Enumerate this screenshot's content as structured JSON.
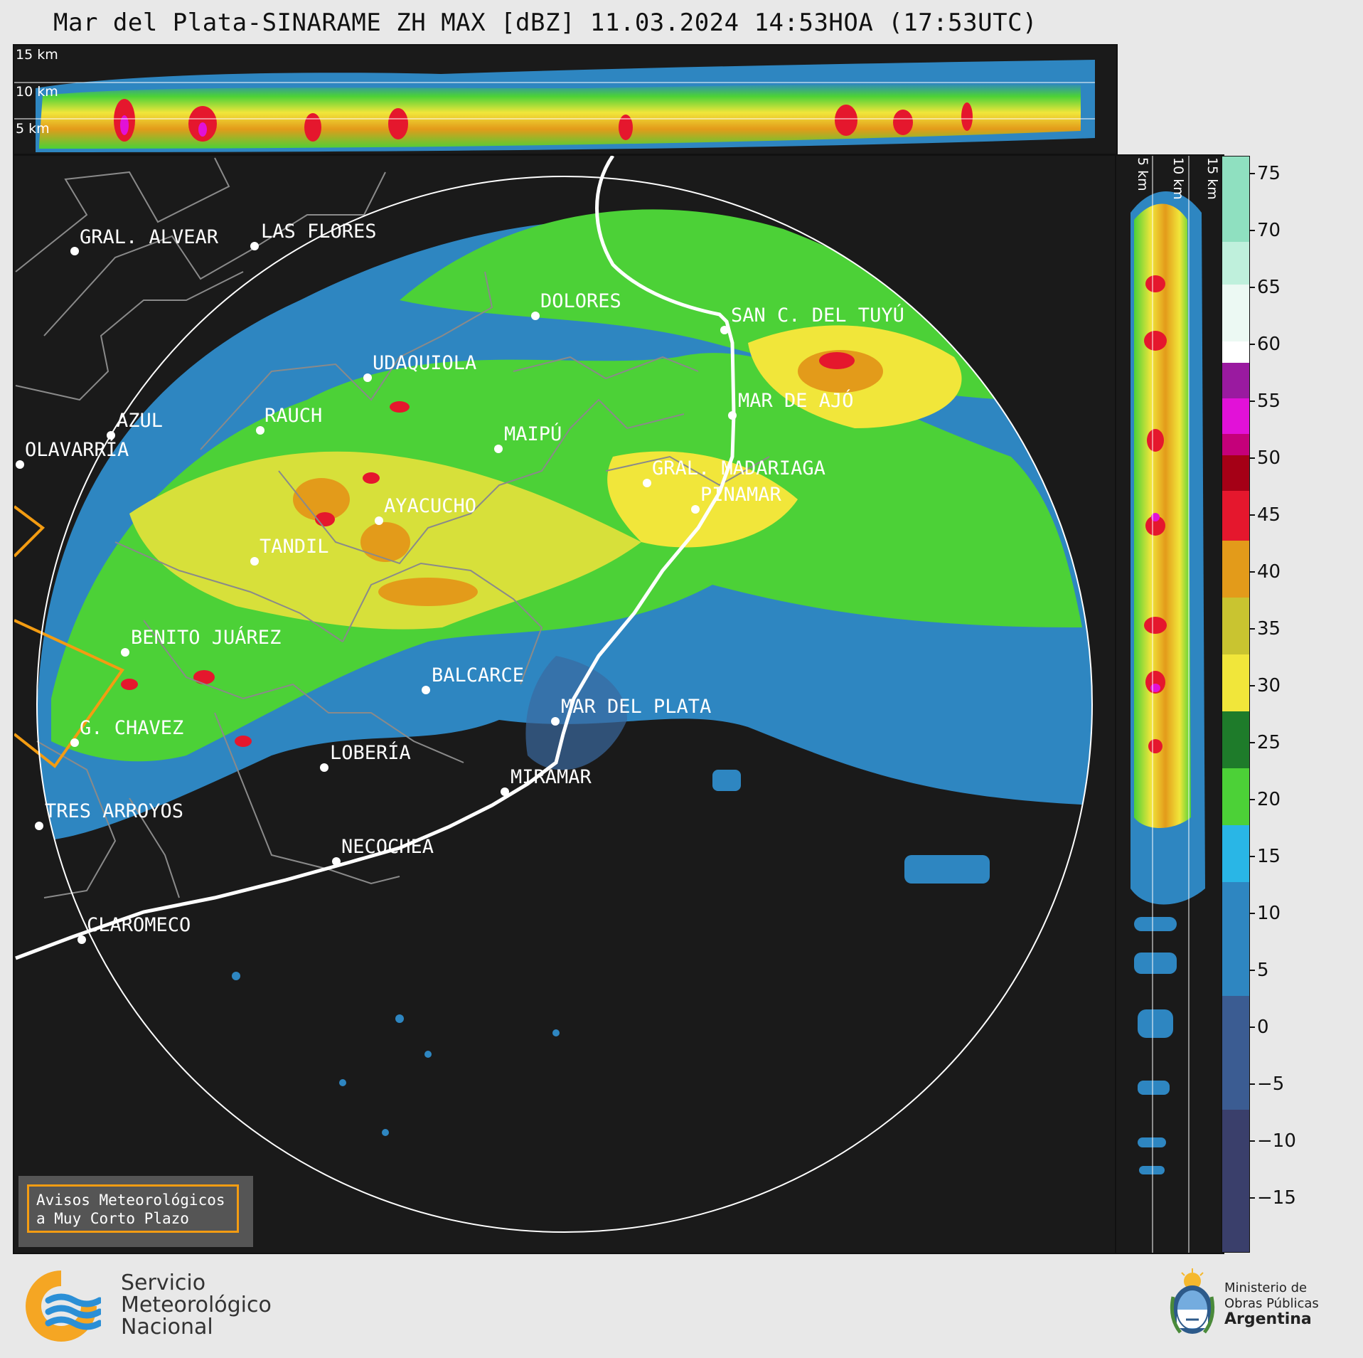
{
  "title": "Mar del Plata-SINARAME ZH MAX [dBZ] 11.03.2024 14:53HOA (17:53UTC)",
  "top_panel": {
    "km_labels": [
      "15 km",
      "10 km",
      "5 km"
    ]
  },
  "side_panel": {
    "km_labels": [
      "5 km",
      "10 km",
      "15 km"
    ]
  },
  "map": {
    "cities": [
      {
        "name": "GRAL. ALVEAR"
      },
      {
        "name": "LAS FLORES"
      },
      {
        "name": "DOLORES"
      },
      {
        "name": "SAN C. DEL TUYÚ"
      },
      {
        "name": "UDAQUIOLA"
      },
      {
        "name": "RAUCH"
      },
      {
        "name": "AZUL"
      },
      {
        "name": "OLAVARRÍA"
      },
      {
        "name": "MAR DE AJÓ"
      },
      {
        "name": "MAIPÚ"
      },
      {
        "name": "GRAL. MADARIAGA"
      },
      {
        "name": "PINAMAR"
      },
      {
        "name": "AYACUCHO"
      },
      {
        "name": "TANDIL"
      },
      {
        "name": "BENITO JUÁREZ"
      },
      {
        "name": "BALCARCE"
      },
      {
        "name": "MAR DEL PLATA"
      },
      {
        "name": "G. CHAVEZ"
      },
      {
        "name": "LOBERÍA"
      },
      {
        "name": "MIRAMAR"
      },
      {
        "name": "TRES ARROYOS"
      },
      {
        "name": "NECOCHEA"
      },
      {
        "name": "CLAROMECO"
      }
    ]
  },
  "colorbar": {
    "unit": "dBZ",
    "ticks": [
      "75",
      "70",
      "65",
      "60",
      "55",
      "50",
      "45",
      "40",
      "35",
      "30",
      "25",
      "20",
      "15",
      "10",
      "5",
      "0",
      "−5",
      "−10",
      "−15"
    ],
    "colors": {
      "low": "#3a3f6b",
      "blue": "#2e86c1",
      "cyan": "#29b6e6",
      "green_light": "#4cd137",
      "green_dark": "#1e7b2a",
      "yellow": "#f1e63a",
      "orange": "#e39b1a",
      "red": "#e5172d",
      "darkred": "#a50016",
      "magenta": "#e211d8",
      "purple": "#9a1aa0",
      "white": "#ffffff",
      "mint": "#8fe0c0"
    }
  },
  "aviso": {
    "line1": "Avisos Meteorológicos",
    "line2": "a Muy Corto Plazo"
  },
  "smn": {
    "line1": "Servicio",
    "line2": "Meteorológico",
    "line3": "Nacional"
  },
  "ministerio": {
    "line1": "Ministerio de",
    "line2": "Obras Públicas",
    "line3": "Argentina"
  }
}
